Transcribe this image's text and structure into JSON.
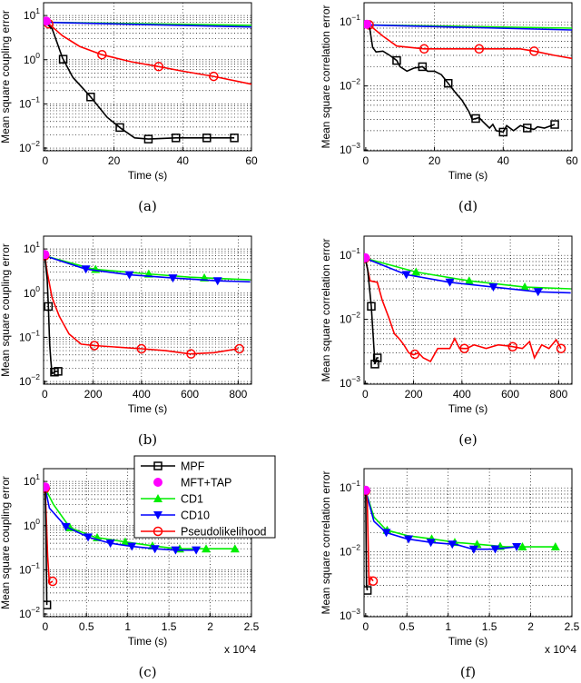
{
  "legend": {
    "placement": "overlapping top of panel (c)",
    "entries": [
      {
        "name": "MPF",
        "color": "#000000",
        "marker": "square-open"
      },
      {
        "name": "MFT+TAP",
        "color": "#ff00ff",
        "marker": "circle-filled"
      },
      {
        "name": "CD1",
        "color": "#00ee00",
        "marker": "triangle-up"
      },
      {
        "name": "CD10",
        "color": "#0000ff",
        "marker": "triangle-down"
      },
      {
        "name": "Pseudolikelihood",
        "color": "#ff0000",
        "marker": "circle-open"
      }
    ]
  },
  "chart_data": [
    {
      "panel": "a",
      "caption": "(a)",
      "type": "line",
      "yscale": "log",
      "grid": true,
      "xlabel": "Time (s)",
      "ylabel": "Mean square coupling error",
      "xlim": [
        -0.5,
        60
      ],
      "ylim": [
        0.0087,
        19.5
      ],
      "xticks": [
        0,
        20,
        40,
        60
      ],
      "xtick_labels": [
        "0",
        "20",
        "40",
        "60"
      ],
      "ytick_exponents": [
        1,
        0,
        -1,
        -2
      ],
      "x_multiplier": "",
      "series": [
        {
          "name": "MPF",
          "x": [
            0,
            2,
            5,
            8,
            13,
            18,
            22,
            26,
            30,
            38,
            47,
            55
          ],
          "y": [
            7,
            5,
            1.1,
            0.4,
            0.15,
            0.05,
            0.028,
            0.017,
            0.016,
            0.017,
            0.017,
            0.017
          ],
          "markers_x": [
            5.2,
            13.2,
            21.7,
            30,
            38,
            47,
            55
          ]
        },
        {
          "name": "MFT+TAP",
          "x": [
            0.3
          ],
          "y": [
            7.5
          ],
          "markers_x": [
            0.3
          ]
        },
        {
          "name": "CD1",
          "x": [
            0,
            60
          ],
          "y": [
            7,
            6.0
          ],
          "markers_x": []
        },
        {
          "name": "CD10",
          "x": [
            0,
            60
          ],
          "y": [
            7,
            5.5
          ],
          "markers_x": []
        },
        {
          "name": "Pseudolikelihood",
          "x": [
            0,
            1,
            5,
            10,
            16.5,
            25,
            33,
            40,
            49,
            60
          ],
          "y": [
            7,
            6.5,
            3.5,
            2,
            1.3,
            0.9,
            0.7,
            0.55,
            0.42,
            0.28
          ],
          "markers_x": [
            1,
            16.5,
            33,
            49
          ]
        }
      ]
    },
    {
      "panel": "d",
      "caption": "(d)",
      "type": "line",
      "yscale": "log",
      "grid": true,
      "xlabel": "Time (s)",
      "ylabel": "Mean square correlation error",
      "xlim": [
        -0.5,
        60
      ],
      "ylim": [
        0.00097,
        0.2
      ],
      "xticks": [
        0,
        20,
        40,
        60
      ],
      "xtick_labels": [
        "0",
        "20",
        "40",
        "60"
      ],
      "ytick_exponents": [
        -1,
        -2,
        -3
      ],
      "x_multiplier": "",
      "series": [
        {
          "name": "MPF",
          "x": [
            0,
            1,
            2,
            3,
            5,
            7,
            9,
            10,
            12,
            14,
            16.5,
            18,
            20,
            22,
            24,
            26,
            28,
            30,
            31,
            33,
            34,
            36,
            37,
            38,
            40,
            41,
            43,
            45,
            47,
            49,
            50,
            52,
            55
          ],
          "y": [
            0.09,
            0.09,
            0.04,
            0.034,
            0.035,
            0.03,
            0.025,
            0.02,
            0.017,
            0.019,
            0.02,
            0.017,
            0.017,
            0.015,
            0.011,
            0.008,
            0.006,
            0.004,
            0.003,
            0.0032,
            0.0028,
            0.0022,
            0.0025,
            0.002,
            0.0019,
            0.0024,
            0.002,
            0.0024,
            0.0022,
            0.0021,
            0.0023,
            0.0022,
            0.0025
          ],
          "markers_x": [
            9,
            16.5,
            24,
            32,
            40,
            47,
            55
          ]
        },
        {
          "name": "MFT+TAP",
          "x": [
            0.3
          ],
          "y": [
            0.092
          ],
          "markers_x": [
            0.3
          ]
        },
        {
          "name": "CD1",
          "x": [
            0,
            60
          ],
          "y": [
            0.09,
            0.08
          ],
          "markers_x": []
        },
        {
          "name": "CD10",
          "x": [
            0,
            60
          ],
          "y": [
            0.09,
            0.075
          ],
          "markers_x": []
        },
        {
          "name": "Pseudolikelihood",
          "x": [
            0,
            1,
            5,
            9,
            17,
            33,
            45,
            49,
            55,
            60
          ],
          "y": [
            0.09,
            0.09,
            0.06,
            0.042,
            0.038,
            0.038,
            0.038,
            0.035,
            0.03,
            0.027
          ],
          "markers_x": [
            1,
            17,
            33,
            49
          ]
        }
      ]
    },
    {
      "panel": "b",
      "caption": "(b)",
      "type": "line",
      "yscale": "log",
      "grid": true,
      "xlabel": "Time (s)",
      "ylabel": "Mean square coupling error",
      "xlim": [
        -5,
        855
      ],
      "ylim": [
        0.0087,
        19.5
      ],
      "xticks": [
        0,
        200,
        400,
        600,
        800
      ],
      "xtick_labels": [
        "0",
        "200",
        "400",
        "600",
        "800"
      ],
      "ytick_exponents": [
        1,
        0,
        -1,
        -2
      ],
      "x_multiplier": "",
      "series": [
        {
          "name": "MPF",
          "x": [
            0,
            10,
            15,
            20,
            25,
            30,
            45,
            55
          ],
          "y": [
            7,
            2,
            0.5,
            0.07,
            0.03,
            0.015,
            0.017,
            0.017
          ],
          "markers_x": [
            15,
            40,
            55
          ]
        },
        {
          "name": "MFT+TAP",
          "x": [
            0
          ],
          "y": [
            7.5
          ],
          "markers_x": [
            0
          ]
        },
        {
          "name": "CD1",
          "x": [
            0,
            200,
            400,
            600,
            850
          ],
          "y": [
            7,
            3.5,
            2.8,
            2.3,
            2.0
          ],
          "markers_x": [
            210,
            430,
            660
          ]
        },
        {
          "name": "CD10",
          "x": [
            0,
            170,
            350,
            530,
            715,
            850
          ],
          "y": [
            7,
            3.5,
            2.6,
            2.2,
            1.9,
            1.8
          ],
          "markers_x": [
            170,
            350,
            530,
            715
          ]
        },
        {
          "name": "Pseudolikelihood",
          "x": [
            0,
            10,
            30,
            60,
            100,
            150,
            205,
            400,
            500,
            600,
            700,
            800
          ],
          "y": [
            7,
            3,
            0.8,
            0.3,
            0.12,
            0.07,
            0.065,
            0.055,
            0.05,
            0.042,
            0.045,
            0.055
          ],
          "markers_x": [
            0,
            205,
            400,
            605,
            805
          ]
        }
      ]
    },
    {
      "panel": "e",
      "caption": "(e)",
      "type": "line",
      "yscale": "log",
      "grid": true,
      "xlabel": "Time (s)",
      "ylabel": "Mean square correlation error",
      "xlim": [
        -5,
        855
      ],
      "ylim": [
        0.00097,
        0.2
      ],
      "xticks": [
        0,
        200,
        400,
        600,
        800
      ],
      "xtick_labels": [
        "0",
        "200",
        "400",
        "600",
        "800"
      ],
      "ytick_exponents": [
        -1,
        -2,
        -3
      ],
      "x_multiplier": "",
      "series": [
        {
          "name": "MPF",
          "x": [
            0,
            10,
            25,
            35,
            40,
            48,
            55
          ],
          "y": [
            0.09,
            0.06,
            0.016,
            0.004,
            0.002,
            0.0025,
            0.0025
          ],
          "markers_x": [
            25,
            40,
            50
          ]
        },
        {
          "name": "MFT+TAP",
          "x": [
            0
          ],
          "y": [
            0.092
          ],
          "markers_x": [
            0
          ]
        },
        {
          "name": "CD1",
          "x": [
            0,
            210,
            430,
            660,
            850
          ],
          "y": [
            0.09,
            0.055,
            0.04,
            0.032,
            0.03
          ],
          "markers_x": [
            210,
            430,
            660
          ]
        },
        {
          "name": "CD10",
          "x": [
            0,
            170,
            350,
            530,
            715,
            850
          ],
          "y": [
            0.09,
            0.05,
            0.038,
            0.032,
            0.027,
            0.026
          ],
          "markers_x": [
            170,
            350,
            530,
            715
          ]
        },
        {
          "name": "Pseudolikelihood",
          "x": [
            0,
            20,
            50,
            70,
            100,
            120,
            140,
            160,
            180,
            200,
            220,
            240,
            270,
            300,
            350,
            370,
            390,
            420,
            450,
            500,
            550,
            600,
            650,
            680,
            700,
            730,
            760,
            790,
            810
          ],
          "y": [
            0.09,
            0.04,
            0.038,
            0.02,
            0.01,
            0.006,
            0.005,
            0.004,
            0.003,
            0.0028,
            0.003,
            0.0025,
            0.0022,
            0.0035,
            0.0035,
            0.005,
            0.0035,
            0.0035,
            0.004,
            0.0035,
            0.004,
            0.0038,
            0.0035,
            0.0045,
            0.0025,
            0.004,
            0.0035,
            0.0048,
            0.0035
          ],
          "markers_x": [
            0,
            205,
            410,
            610,
            810
          ]
        }
      ]
    },
    {
      "panel": "c",
      "caption": "(c)",
      "type": "line",
      "yscale": "log",
      "grid": true,
      "xlabel": "Time (s)",
      "ylabel": "Mean square coupling error",
      "xlim": [
        -200,
        25000
      ],
      "ylim": [
        0.0087,
        19.5
      ],
      "xticks": [
        0,
        5000,
        10000,
        15000,
        20000,
        25000
      ],
      "xtick_labels": [
        "0",
        "0.5",
        "1",
        "1.5",
        "2",
        "2.5"
      ],
      "ytick_exponents": [
        1,
        0,
        -1,
        -2
      ],
      "x_multiplier": "x 10^4",
      "series": [
        {
          "name": "MPF",
          "x": [
            0,
            100,
            200
          ],
          "y": [
            7,
            0.5,
            0.016
          ],
          "markers_x": [
            200
          ]
        },
        {
          "name": "MFT+TAP",
          "x": [
            0
          ],
          "y": [
            7.5
          ],
          "markers_x": [
            0
          ]
        },
        {
          "name": "CD1",
          "x": [
            0,
            1000,
            3000,
            6000,
            10000,
            13000,
            16000,
            20000,
            23000
          ],
          "y": [
            7,
            3,
            0.9,
            0.55,
            0.42,
            0.35,
            0.3,
            0.3,
            0.3
          ],
          "markers_x": [
            3000,
            6300,
            9700,
            13000,
            16300,
            19500,
            23000
          ]
        },
        {
          "name": "CD10",
          "x": [
            0,
            500,
            2500,
            5200,
            7900,
            10500,
            13300,
            15800,
            18300
          ],
          "y": [
            7,
            2.5,
            0.95,
            0.55,
            0.4,
            0.34,
            0.3,
            0.28,
            0.28
          ],
          "markers_x": [
            2500,
            5200,
            7900,
            10500,
            13300,
            15800,
            18300
          ]
        },
        {
          "name": "Pseudolikelihood",
          "x": [
            0,
            300,
            500,
            900
          ],
          "y": [
            7,
            0.2,
            0.05,
            0.055
          ],
          "markers_x": [
            0,
            900
          ]
        }
      ]
    },
    {
      "panel": "f",
      "caption": "(f)",
      "type": "line",
      "yscale": "log",
      "grid": true,
      "xlabel": "Time (s)",
      "ylabel": "Mean square correlation error",
      "xlim": [
        -200,
        25000
      ],
      "ylim": [
        0.00097,
        0.2
      ],
      "xticks": [
        0,
        5000,
        10000,
        15000,
        20000,
        25000
      ],
      "xtick_labels": [
        "0",
        "0.5",
        "1",
        "1.5",
        "2",
        "2.5"
      ],
      "ytick_exponents": [
        -1,
        -2,
        -3
      ],
      "x_multiplier": "x 10^4",
      "series": [
        {
          "name": "MPF",
          "x": [
            0,
            100,
            200
          ],
          "y": [
            0.09,
            0.003,
            0.0025
          ],
          "markers_x": [
            200
          ]
        },
        {
          "name": "MFT+TAP",
          "x": [
            0
          ],
          "y": [
            0.092
          ],
          "markers_x": [
            0
          ]
        },
        {
          "name": "CD1",
          "x": [
            0,
            1000,
            2500,
            5000,
            8000,
            11000,
            14000,
            17000,
            20000,
            23000
          ],
          "y": [
            0.09,
            0.035,
            0.022,
            0.018,
            0.016,
            0.014,
            0.013,
            0.012,
            0.012,
            0.012
          ],
          "markers_x": [
            2600,
            8000,
            10800,
            13500,
            16300,
            19000,
            23000
          ]
        },
        {
          "name": "CD10",
          "x": [
            0,
            1000,
            2500,
            5000,
            8000,
            11000,
            13000,
            15500,
            18300
          ],
          "y": [
            0.09,
            0.03,
            0.02,
            0.016,
            0.014,
            0.013,
            0.011,
            0.011,
            0.012
          ],
          "markers_x": [
            2500,
            5200,
            7900,
            10500,
            13100,
            15700,
            18300
          ]
        },
        {
          "name": "Pseudolikelihood",
          "x": [
            0,
            200,
            400,
            600,
            900
          ],
          "y": [
            0.09,
            0.06,
            0.003,
            0.004,
            0.0035
          ],
          "markers_x": [
            0,
            900
          ]
        }
      ]
    }
  ]
}
